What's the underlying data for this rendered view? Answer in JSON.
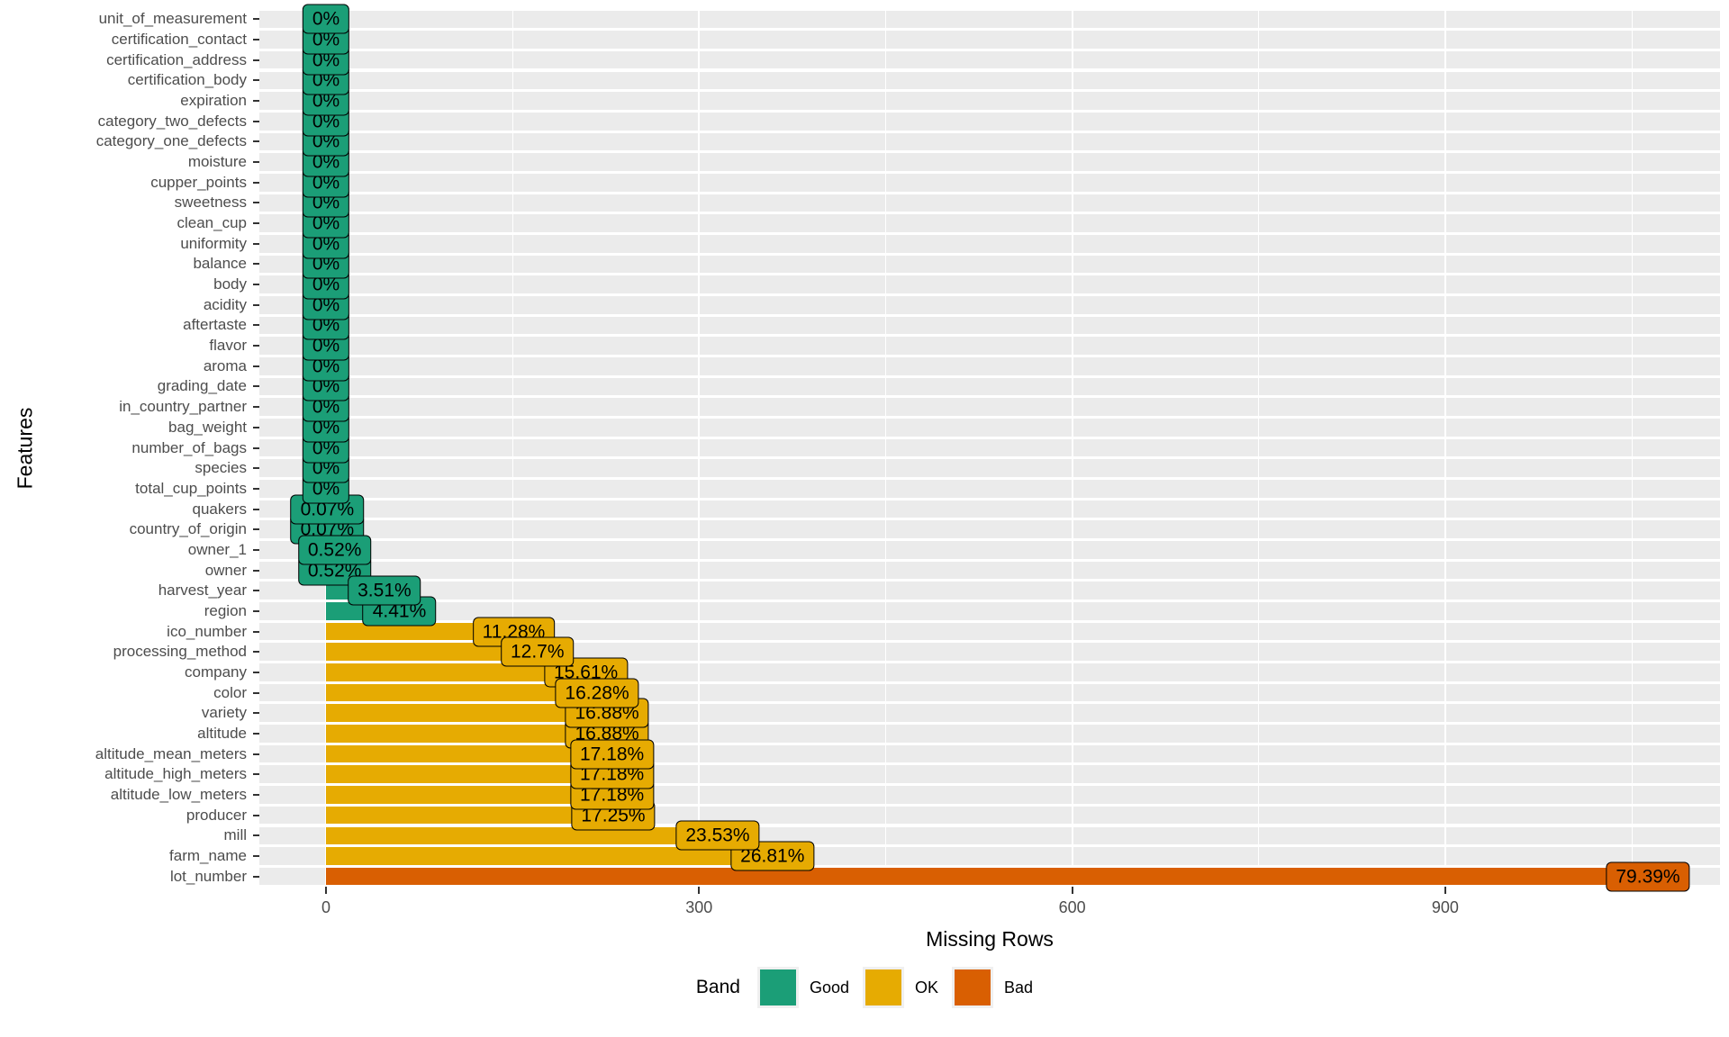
{
  "chart_data": {
    "type": "bar",
    "orientation": "horizontal",
    "title": "",
    "xlabel": "Missing Rows",
    "ylabel": "Features",
    "x_tick_labels": [
      "0",
      "300",
      "600",
      "900"
    ],
    "x_tick_values": [
      0,
      300,
      600,
      900
    ],
    "x_minor_tick_values": [
      150,
      450,
      750,
      1050
    ],
    "xlim": [
      -54,
      1121
    ],
    "grid": true,
    "panel_background": "#EBEBEB",
    "legend": {
      "title": "Band",
      "position": "bottom",
      "entries": [
        {
          "label": "Good",
          "color": "#1B9E77"
        },
        {
          "label": "OK",
          "color": "#E6AB02"
        },
        {
          "label": "Bad",
          "color": "#D95F02"
        }
      ]
    },
    "band_colors": {
      "Good": "#1B9E77",
      "OK": "#E6AB02",
      "Bad": "#D95F02"
    },
    "features": [
      {
        "label": "unit_of_measurement",
        "missing_rows": 0,
        "pct": "0%",
        "band": "Good"
      },
      {
        "label": "certification_contact",
        "missing_rows": 0,
        "pct": "0%",
        "band": "Good"
      },
      {
        "label": "certification_address",
        "missing_rows": 0,
        "pct": "0%",
        "band": "Good"
      },
      {
        "label": "certification_body",
        "missing_rows": 0,
        "pct": "0%",
        "band": "Good"
      },
      {
        "label": "expiration",
        "missing_rows": 0,
        "pct": "0%",
        "band": "Good"
      },
      {
        "label": "category_two_defects",
        "missing_rows": 0,
        "pct": "0%",
        "band": "Good"
      },
      {
        "label": "category_one_defects",
        "missing_rows": 0,
        "pct": "0%",
        "band": "Good"
      },
      {
        "label": "moisture",
        "missing_rows": 0,
        "pct": "0%",
        "band": "Good"
      },
      {
        "label": "cupper_points",
        "missing_rows": 0,
        "pct": "0%",
        "band": "Good"
      },
      {
        "label": "sweetness",
        "missing_rows": 0,
        "pct": "0%",
        "band": "Good"
      },
      {
        "label": "clean_cup",
        "missing_rows": 0,
        "pct": "0%",
        "band": "Good"
      },
      {
        "label": "uniformity",
        "missing_rows": 0,
        "pct": "0%",
        "band": "Good"
      },
      {
        "label": "balance",
        "missing_rows": 0,
        "pct": "0%",
        "band": "Good"
      },
      {
        "label": "body",
        "missing_rows": 0,
        "pct": "0%",
        "band": "Good"
      },
      {
        "label": "acidity",
        "missing_rows": 0,
        "pct": "0%",
        "band": "Good"
      },
      {
        "label": "aftertaste",
        "missing_rows": 0,
        "pct": "0%",
        "band": "Good"
      },
      {
        "label": "flavor",
        "missing_rows": 0,
        "pct": "0%",
        "band": "Good"
      },
      {
        "label": "aroma",
        "missing_rows": 0,
        "pct": "0%",
        "band": "Good"
      },
      {
        "label": "grading_date",
        "missing_rows": 0,
        "pct": "0%",
        "band": "Good"
      },
      {
        "label": "in_country_partner",
        "missing_rows": 0,
        "pct": "0%",
        "band": "Good"
      },
      {
        "label": "bag_weight",
        "missing_rows": 0,
        "pct": "0%",
        "band": "Good"
      },
      {
        "label": "number_of_bags",
        "missing_rows": 0,
        "pct": "0%",
        "band": "Good"
      },
      {
        "label": "species",
        "missing_rows": 0,
        "pct": "0%",
        "band": "Good"
      },
      {
        "label": "total_cup_points",
        "missing_rows": 0,
        "pct": "0%",
        "band": "Good"
      },
      {
        "label": "quakers",
        "missing_rows": 1,
        "pct": "0.07%",
        "band": "Good"
      },
      {
        "label": "country_of_origin",
        "missing_rows": 1,
        "pct": "0.07%",
        "band": "Good"
      },
      {
        "label": "owner_1",
        "missing_rows": 7,
        "pct": "0.52%",
        "band": "Good"
      },
      {
        "label": "owner",
        "missing_rows": 7,
        "pct": "0.52%",
        "band": "Good"
      },
      {
        "label": "harvest_year",
        "missing_rows": 47,
        "pct": "3.51%",
        "band": "Good"
      },
      {
        "label": "region",
        "missing_rows": 59,
        "pct": "4.41%",
        "band": "Good"
      },
      {
        "label": "ico_number",
        "missing_rows": 151,
        "pct": "11.28%",
        "band": "OK"
      },
      {
        "label": "processing_method",
        "missing_rows": 170,
        "pct": "12.7%",
        "band": "OK"
      },
      {
        "label": "company",
        "missing_rows": 209,
        "pct": "15.61%",
        "band": "OK"
      },
      {
        "label": "color",
        "missing_rows": 218,
        "pct": "16.28%",
        "band": "OK"
      },
      {
        "label": "variety",
        "missing_rows": 226,
        "pct": "16.88%",
        "band": "OK"
      },
      {
        "label": "altitude",
        "missing_rows": 226,
        "pct": "16.88%",
        "band": "OK"
      },
      {
        "label": "altitude_mean_meters",
        "missing_rows": 230,
        "pct": "17.18%",
        "band": "OK"
      },
      {
        "label": "altitude_high_meters",
        "missing_rows": 230,
        "pct": "17.18%",
        "band": "OK"
      },
      {
        "label": "altitude_low_meters",
        "missing_rows": 230,
        "pct": "17.18%",
        "band": "OK"
      },
      {
        "label": "producer",
        "missing_rows": 231,
        "pct": "17.25%",
        "band": "OK"
      },
      {
        "label": "mill",
        "missing_rows": 315,
        "pct": "23.53%",
        "band": "OK"
      },
      {
        "label": "farm_name",
        "missing_rows": 359,
        "pct": "26.81%",
        "band": "OK"
      },
      {
        "label": "lot_number",
        "missing_rows": 1063,
        "pct": "79.39%",
        "band": "Bad"
      }
    ]
  }
}
